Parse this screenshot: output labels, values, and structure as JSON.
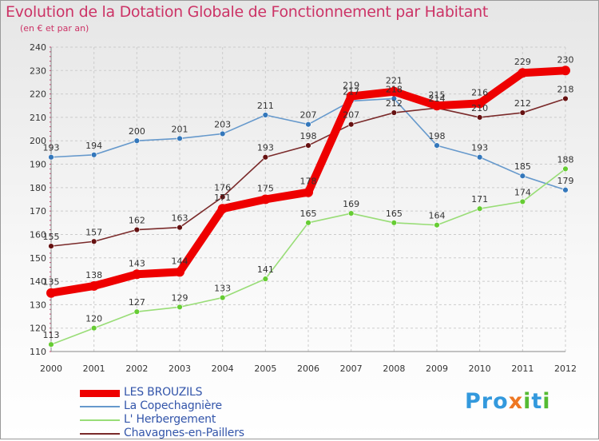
{
  "title": "Evolution de la Dotation Globale de Fonctionnement par Habitant",
  "subtitle": "(en € et par an)",
  "brand": {
    "text": "Proxiti"
  },
  "chart_data": {
    "type": "line",
    "title": "Evolution de la Dotation Globale de Fonctionnement par Habitant",
    "subtitle": "(en € et par an)",
    "x": [
      "2000",
      "2001",
      "2002",
      "2003",
      "2004",
      "2005",
      "2006",
      "2007",
      "2008",
      "2009",
      "2010",
      "2011",
      "2012"
    ],
    "ylim": [
      110,
      240
    ],
    "yticks": [
      110,
      120,
      130,
      140,
      150,
      160,
      170,
      180,
      190,
      200,
      210,
      220,
      230,
      240
    ],
    "grid": true,
    "legend_position": "bottom-left",
    "series": [
      {
        "name": "LES BROUZILS",
        "color": "#ee0000",
        "point_color": "#ee0000",
        "thick": true,
        "values": [
          135,
          138,
          143,
          144,
          171,
          175,
          178,
          219,
          221,
          215,
          216,
          229,
          230
        ],
        "labels": [
          "135",
          "138",
          "143",
          "144",
          "171",
          "175",
          "178",
          "219",
          "221",
          "215",
          "216",
          "229",
          "230"
        ]
      },
      {
        "name": "La Copechagnière",
        "color": "#6699cc",
        "point_color": "#3377bb",
        "values": [
          193,
          194,
          200,
          201,
          203,
          211,
          207,
          217,
          218,
          198,
          193,
          185,
          179
        ],
        "labels": [
          "193",
          "194",
          "200",
          "201",
          "203",
          "211",
          "207",
          "217",
          "218",
          "198",
          "193",
          "185",
          "179"
        ]
      },
      {
        "name": "L' Herbergement",
        "color": "#99dd77",
        "point_color": "#66cc33",
        "values": [
          113,
          120,
          127,
          129,
          133,
          141,
          165,
          169,
          165,
          164,
          171,
          174,
          188
        ],
        "labels": [
          "113",
          "120",
          "127",
          "129",
          "133",
          "141",
          "165",
          "169",
          "165",
          "164",
          "171",
          "174",
          "188"
        ]
      },
      {
        "name": "Chavagnes-en-Paillers",
        "color": "#7a2a2a",
        "point_color": "#661111",
        "values": [
          155,
          157,
          162,
          163,
          176,
          193,
          198,
          207,
          212,
          214,
          210,
          212,
          218
        ],
        "labels": [
          "155",
          "157",
          "162",
          "163",
          "176",
          "193",
          "198",
          "207",
          "212",
          "214",
          "210",
          "212",
          "218"
        ]
      }
    ]
  }
}
